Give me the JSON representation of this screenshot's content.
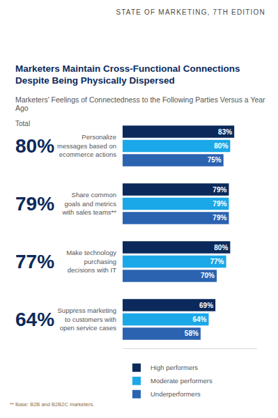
{
  "header": "STATE OF MARKETING, 7TH EDITION",
  "footnote": "** Base: B2B and B2B2C marketers.",
  "chart_data": {
    "type": "bar",
    "orientation": "horizontal",
    "title": "Marketers Maintain Cross-Functional Connections\nDespite Being Physically Dispersed",
    "subtitle": "Marketers' Feelings of Connectedness to the Following Parties Versus a Year Ago",
    "categories": [
      "Personalize\nmessages based on\necommerce actions",
      "Share common\ngoals and metrics\nwith sales teams**",
      "Make technology\npurchasing\ndecisions with IT",
      "Suppress marketing\nto customers with\nopen service cases"
    ],
    "series": [
      {
        "name": "High performers",
        "color": "#0b2a5b",
        "values": [
          83,
          79,
          80,
          69
        ],
        "value_labels": [
          "83%",
          "79%",
          "80%",
          "69%"
        ]
      },
      {
        "name": "Moderate performers",
        "color": "#1ba8e8",
        "values": [
          80,
          79,
          77,
          64
        ],
        "value_labels": [
          "80%",
          "79%",
          "77%",
          "64%"
        ]
      },
      {
        "name": "Underperformers",
        "color": "#2b63b0",
        "values": [
          75,
          79,
          70,
          58
        ],
        "value_labels": [
          "75%",
          "79%",
          "70%",
          "58%"
        ]
      }
    ],
    "xlim": [
      0,
      100
    ],
    "tick_labels": "y",
    "grid": false,
    "data_labels": true,
    "legend": "bottom",
    "totals": {
      "title": "Total",
      "values": [
        80,
        79,
        77,
        64
      ],
      "value_labels": [
        "80%",
        "79%",
        "77%",
        "64%"
      ]
    }
  }
}
